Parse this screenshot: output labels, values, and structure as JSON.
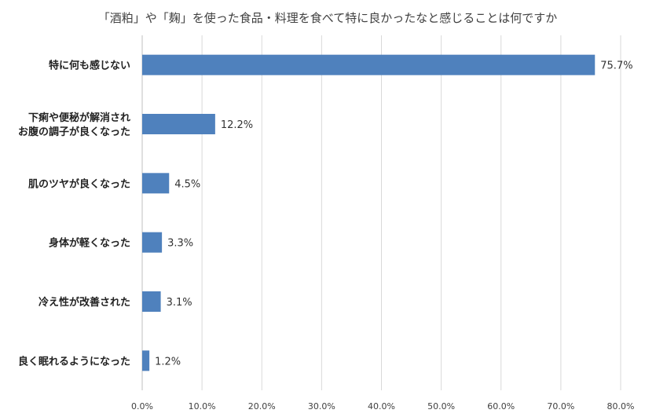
{
  "chart_data": {
    "type": "bar",
    "orientation": "horizontal",
    "title": "「酒粕」や「麹」を使った食品・料理を食べて特に良かったなと感じることは何ですか",
    "categories": [
      "特に何も感じない",
      "下痢や便秘が解消されお腹の調子が良くなった",
      "肌のツヤが良くなった",
      "身体が軽くなった",
      "冷え性が改善された",
      "良く眠れるようになった"
    ],
    "category_lines": [
      [
        "特に何も感じない"
      ],
      [
        "下痢や便秘が解消され",
        "お腹の調子が良くなった"
      ],
      [
        "肌のツヤが良くなった"
      ],
      [
        "身体が軽くなった"
      ],
      [
        "冷え性が改善された"
      ],
      [
        "良く眠れるようになった"
      ]
    ],
    "values": [
      75.7,
      12.2,
      4.5,
      3.3,
      3.1,
      1.2
    ],
    "value_labels": [
      "75.7%",
      "12.2%",
      "4.5%",
      "3.3%",
      "3.1%",
      "1.2%"
    ],
    "xlim": [
      0,
      80
    ],
    "xticks": [
      0,
      10,
      20,
      30,
      40,
      50,
      60,
      70,
      80
    ],
    "xtick_labels": [
      "0.0%",
      "10.0%",
      "20.0%",
      "30.0%",
      "40.0%",
      "50.0%",
      "60.0%",
      "70.0%",
      "80.0%"
    ],
    "xlabel": "",
    "ylabel": "",
    "grid": "vertical",
    "legend": "none",
    "bar_color": "#4f81bd",
    "grid_color": "#d9d9d9"
  }
}
